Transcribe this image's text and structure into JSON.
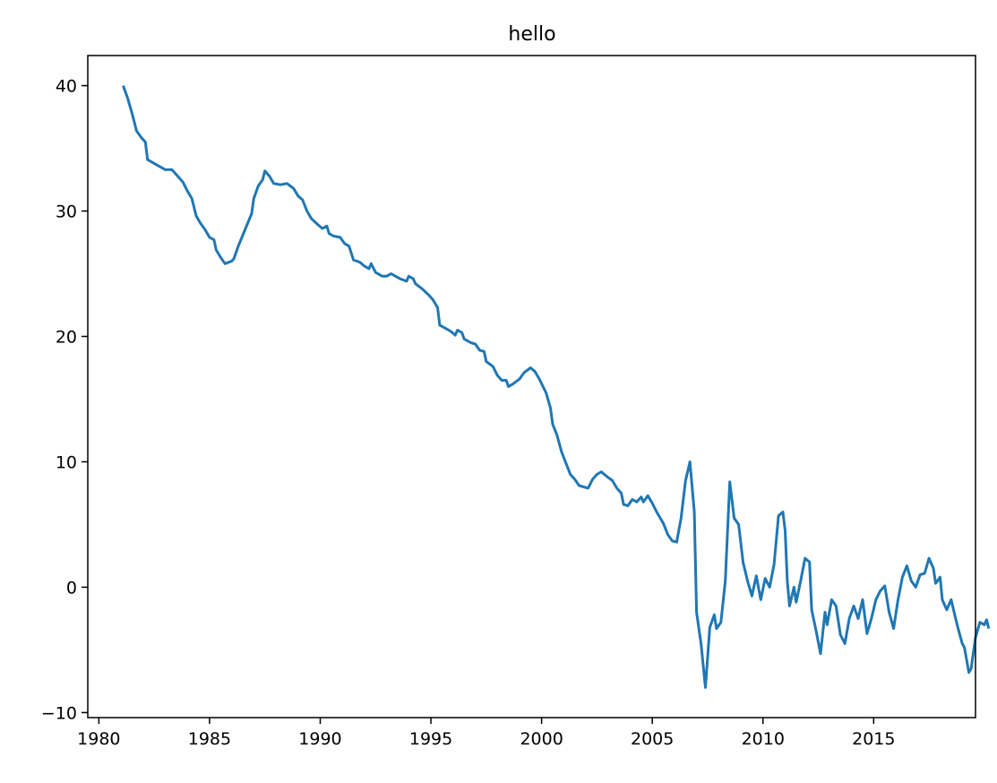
{
  "chart_data": {
    "type": "line",
    "title": "hello",
    "xlabel": "",
    "ylabel": "",
    "xlim": [
      1979.5,
      2019.6
    ],
    "ylim": [
      -10.4,
      42.4
    ],
    "grid": false,
    "xticks": [
      1980,
      1985,
      1990,
      1995,
      2000,
      2005,
      2010,
      2015
    ],
    "yticks": [
      -10,
      0,
      10,
      20,
      30,
      40
    ],
    "xtick_labels": [
      "1980",
      "1985",
      "1990",
      "1995",
      "2000",
      "2005",
      "2010",
      "2015"
    ],
    "ytick_labels": [
      "−10",
      "0",
      "10",
      "20",
      "30",
      "40"
    ],
    "series": [
      {
        "color": "#1f77b4",
        "points": [
          [
            1981.1,
            40.0
          ],
          [
            1981.3,
            39.0
          ],
          [
            1981.5,
            37.8
          ],
          [
            1981.7,
            36.4
          ],
          [
            1981.9,
            35.9
          ],
          [
            1982.1,
            35.5
          ],
          [
            1982.2,
            34.1
          ],
          [
            1982.6,
            33.7
          ],
          [
            1983.0,
            33.3
          ],
          [
            1983.3,
            33.3
          ],
          [
            1983.5,
            32.9
          ],
          [
            1983.8,
            32.3
          ],
          [
            1984.0,
            31.6
          ],
          [
            1984.2,
            31.0
          ],
          [
            1984.4,
            29.6
          ],
          [
            1984.6,
            29.0
          ],
          [
            1984.8,
            28.5
          ],
          [
            1985.0,
            27.9
          ],
          [
            1985.2,
            27.7
          ],
          [
            1985.3,
            26.9
          ],
          [
            1985.5,
            26.3
          ],
          [
            1985.7,
            25.8
          ],
          [
            1986.0,
            26.0
          ],
          [
            1986.1,
            26.2
          ],
          [
            1986.3,
            27.2
          ],
          [
            1986.6,
            28.5
          ],
          [
            1986.9,
            29.8
          ],
          [
            1987.0,
            31.0
          ],
          [
            1987.2,
            32.0
          ],
          [
            1987.4,
            32.5
          ],
          [
            1987.5,
            33.2
          ],
          [
            1987.7,
            32.8
          ],
          [
            1987.9,
            32.2
          ],
          [
            1988.2,
            32.1
          ],
          [
            1988.5,
            32.2
          ],
          [
            1988.8,
            31.8
          ],
          [
            1989.0,
            31.2
          ],
          [
            1989.2,
            30.9
          ],
          [
            1989.4,
            30.0
          ],
          [
            1989.6,
            29.4
          ],
          [
            1989.9,
            28.9
          ],
          [
            1990.1,
            28.6
          ],
          [
            1990.3,
            28.8
          ],
          [
            1990.4,
            28.2
          ],
          [
            1990.6,
            28.0
          ],
          [
            1990.9,
            27.9
          ],
          [
            1991.1,
            27.4
          ],
          [
            1991.3,
            27.2
          ],
          [
            1991.5,
            26.1
          ],
          [
            1991.8,
            25.9
          ],
          [
            1992.0,
            25.6
          ],
          [
            1992.2,
            25.4
          ],
          [
            1992.3,
            25.8
          ],
          [
            1992.5,
            25.1
          ],
          [
            1992.8,
            24.8
          ],
          [
            1993.0,
            24.8
          ],
          [
            1993.2,
            25.0
          ],
          [
            1993.4,
            24.8
          ],
          [
            1993.6,
            24.6
          ],
          [
            1993.9,
            24.4
          ],
          [
            1994.0,
            24.8
          ],
          [
            1994.2,
            24.6
          ],
          [
            1994.3,
            24.2
          ],
          [
            1994.6,
            23.8
          ],
          [
            1994.9,
            23.3
          ],
          [
            1995.1,
            22.9
          ],
          [
            1995.3,
            22.3
          ],
          [
            1995.4,
            20.9
          ],
          [
            1995.7,
            20.6
          ],
          [
            1995.9,
            20.4
          ],
          [
            1996.1,
            20.1
          ],
          [
            1996.2,
            20.5
          ],
          [
            1996.4,
            20.3
          ],
          [
            1996.5,
            19.8
          ],
          [
            1996.8,
            19.5
          ],
          [
            1997.0,
            19.4
          ],
          [
            1997.2,
            18.9
          ],
          [
            1997.4,
            18.8
          ],
          [
            1997.5,
            18.0
          ],
          [
            1997.8,
            17.6
          ],
          [
            1998.0,
            16.9
          ],
          [
            1998.2,
            16.5
          ],
          [
            1998.4,
            16.5
          ],
          [
            1998.5,
            16.0
          ],
          [
            1998.7,
            16.2
          ],
          [
            1999.0,
            16.6
          ],
          [
            1999.2,
            17.1
          ],
          [
            1999.5,
            17.5
          ],
          [
            1999.7,
            17.2
          ],
          [
            1999.9,
            16.6
          ],
          [
            2000.2,
            15.5
          ],
          [
            2000.4,
            14.3
          ],
          [
            2000.5,
            13.0
          ],
          [
            2000.7,
            12.1
          ],
          [
            2000.9,
            10.8
          ],
          [
            2001.1,
            9.9
          ],
          [
            2001.3,
            9.0
          ],
          [
            2001.5,
            8.6
          ],
          [
            2001.7,
            8.1
          ],
          [
            2001.9,
            8.0
          ],
          [
            2002.1,
            7.9
          ],
          [
            2002.3,
            8.6
          ],
          [
            2002.5,
            9.0
          ],
          [
            2002.7,
            9.2
          ],
          [
            2002.9,
            8.9
          ],
          [
            2003.2,
            8.5
          ],
          [
            2003.4,
            7.9
          ],
          [
            2003.6,
            7.5
          ],
          [
            2003.7,
            6.6
          ],
          [
            2003.9,
            6.5
          ],
          [
            2004.1,
            7.0
          ],
          [
            2004.3,
            6.8
          ],
          [
            2004.5,
            7.2
          ],
          [
            2004.6,
            6.8
          ],
          [
            2004.8,
            7.3
          ],
          [
            2005.0,
            6.7
          ],
          [
            2005.2,
            6.0
          ],
          [
            2005.5,
            5.1
          ],
          [
            2005.7,
            4.2
          ],
          [
            2005.9,
            3.7
          ],
          [
            2006.1,
            3.6
          ],
          [
            2006.3,
            5.5
          ],
          [
            2006.5,
            8.5
          ],
          [
            2006.7,
            10.0
          ],
          [
            2006.9,
            6.0
          ],
          [
            2007.0,
            -2.0
          ],
          [
            2007.2,
            -4.5
          ],
          [
            2007.4,
            -8.0
          ],
          [
            2007.6,
            -3.2
          ],
          [
            2007.8,
            -2.2
          ],
          [
            2007.9,
            -3.3
          ],
          [
            2008.1,
            -2.8
          ],
          [
            2008.3,
            0.5
          ],
          [
            2008.5,
            8.4
          ],
          [
            2008.7,
            5.5
          ],
          [
            2008.9,
            5.0
          ],
          [
            2009.1,
            2.0
          ],
          [
            2009.3,
            0.5
          ],
          [
            2009.5,
            -0.7
          ],
          [
            2009.7,
            0.9
          ],
          [
            2009.9,
            -1.0
          ],
          [
            2010.1,
            0.7
          ],
          [
            2010.3,
            0.0
          ],
          [
            2010.5,
            1.8
          ],
          [
            2010.7,
            5.7
          ],
          [
            2010.9,
            6.0
          ],
          [
            2011.0,
            4.5
          ],
          [
            2011.1,
            0.5
          ],
          [
            2011.2,
            -1.5
          ],
          [
            2011.4,
            0.0
          ],
          [
            2011.5,
            -1.2
          ],
          [
            2011.7,
            0.5
          ],
          [
            2011.9,
            2.3
          ],
          [
            2012.1,
            2.0
          ],
          [
            2012.2,
            -1.8
          ],
          [
            2012.4,
            -3.5
          ],
          [
            2012.6,
            -5.3
          ],
          [
            2012.8,
            -2.0
          ],
          [
            2012.9,
            -3.0
          ],
          [
            2013.1,
            -1.0
          ],
          [
            2013.3,
            -1.5
          ],
          [
            2013.5,
            -3.8
          ],
          [
            2013.7,
            -4.5
          ],
          [
            2013.9,
            -2.5
          ],
          [
            2014.1,
            -1.5
          ],
          [
            2014.3,
            -2.5
          ],
          [
            2014.5,
            -1.0
          ],
          [
            2014.7,
            -3.7
          ],
          [
            2014.9,
            -2.5
          ],
          [
            2015.1,
            -1.0
          ],
          [
            2015.3,
            -0.3
          ],
          [
            2015.5,
            0.1
          ],
          [
            2015.7,
            -2.0
          ],
          [
            2015.9,
            -3.3
          ],
          [
            2016.1,
            -1.0
          ],
          [
            2016.3,
            0.8
          ],
          [
            2016.5,
            1.7
          ],
          [
            2016.7,
            0.5
          ],
          [
            2016.9,
            0.0
          ],
          [
            2017.1,
            1.0
          ],
          [
            2017.3,
            1.1
          ],
          [
            2017.5,
            2.3
          ],
          [
            2017.7,
            1.5
          ],
          [
            2017.8,
            0.3
          ],
          [
            2018.0,
            0.8
          ],
          [
            2018.1,
            -1.0
          ],
          [
            2018.3,
            -1.8
          ],
          [
            2018.5,
            -1.0
          ],
          [
            2018.7,
            -2.5
          ],
          [
            2018.8,
            -3.2
          ],
          [
            2019.0,
            -4.5
          ],
          [
            2019.1,
            -4.8
          ],
          [
            2019.3,
            -6.8
          ],
          [
            2019.4,
            -6.5
          ],
          [
            2019.6,
            -4.0
          ],
          [
            2019.8,
            -2.8
          ],
          [
            2020.0,
            -3.0
          ],
          [
            2020.1,
            -2.6
          ],
          [
            2020.2,
            -3.3
          ]
        ]
      }
    ]
  }
}
